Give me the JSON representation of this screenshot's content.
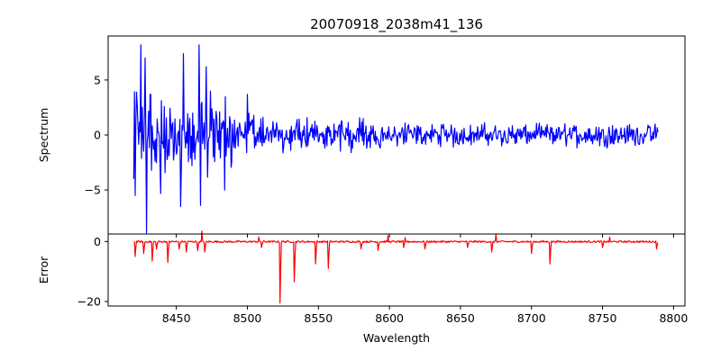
{
  "chart_data": [
    {
      "type": "line",
      "title": "20070918_2038m41_136",
      "xlabel": "",
      "ylabel": "Spectrum",
      "xlim": [
        8402,
        8808
      ],
      "ylim": [
        -9,
        9
      ],
      "yticks": [
        -5,
        0,
        5
      ],
      "xticks_shown": false,
      "grid": false,
      "color": "#0000ff",
      "series": [
        {
          "x_start": 8420.0,
          "x_step": 0.5,
          "values_note_free": true,
          "values": []
        }
      ],
      "anchor_points": [
        {
          "x": 8420,
          "y": -4.0
        },
        {
          "x": 8421,
          "y": -5.5
        },
        {
          "x": 8422,
          "y": 3.9
        },
        {
          "x": 8425,
          "y": 8.2
        },
        {
          "x": 8428,
          "y": 7.0
        },
        {
          "x": 8429,
          "y": -8.9
        },
        {
          "x": 8432,
          "y": 3.7
        },
        {
          "x": 8453,
          "y": -6.5
        },
        {
          "x": 8455,
          "y": 7.4
        },
        {
          "x": 8466,
          "y": 8.2
        },
        {
          "x": 8467,
          "y": -6.4
        },
        {
          "x": 8471,
          "y": 6.2
        },
        {
          "x": 8484,
          "y": -5.0
        },
        {
          "x": 8500,
          "y": 3.7
        }
      ]
    },
    {
      "type": "line",
      "title": "",
      "xlabel": "Wavelength",
      "ylabel": "Error",
      "xlim": [
        8402,
        8808
      ],
      "ylim": [
        -21.5,
        2.5
      ],
      "yticks": [
        -20,
        0
      ],
      "xticks": [
        8450,
        8500,
        8550,
        8600,
        8650,
        8700,
        8750,
        8800
      ],
      "grid": false,
      "color": "#ff0000",
      "dips": [
        {
          "x": 8421,
          "y": -5.0
        },
        {
          "x": 8427,
          "y": -4.0
        },
        {
          "x": 8433,
          "y": -6.5
        },
        {
          "x": 8436,
          "y": -2.5
        },
        {
          "x": 8444,
          "y": -7.0
        },
        {
          "x": 8452,
          "y": -2.5
        },
        {
          "x": 8457,
          "y": -3.5
        },
        {
          "x": 8465,
          "y": -3.0
        },
        {
          "x": 8470,
          "y": -3.5
        },
        {
          "x": 8510,
          "y": -2.0
        },
        {
          "x": 8523,
          "y": -20.5
        },
        {
          "x": 8533,
          "y": -13.5
        },
        {
          "x": 8548,
          "y": -7.5
        },
        {
          "x": 8557,
          "y": -9.0
        },
        {
          "x": 8580,
          "y": -2.5
        },
        {
          "x": 8592,
          "y": -3.0
        },
        {
          "x": 8610,
          "y": -2.0
        },
        {
          "x": 8625,
          "y": -2.5
        },
        {
          "x": 8655,
          "y": -2.0
        },
        {
          "x": 8672,
          "y": -3.5
        },
        {
          "x": 8700,
          "y": -4.0
        },
        {
          "x": 8713,
          "y": -7.5
        },
        {
          "x": 8750,
          "y": -2.0
        },
        {
          "x": 8788,
          "y": -2.5
        }
      ],
      "peaks": [
        {
          "x": 8468,
          "y": 3.5
        },
        {
          "x": 8508,
          "y": 1.5
        },
        {
          "x": 8599,
          "y": 2.0
        },
        {
          "x": 8611,
          "y": 1.3
        },
        {
          "x": 8675,
          "y": 2.5
        },
        {
          "x": 8755,
          "y": 1.5
        }
      ]
    }
  ]
}
